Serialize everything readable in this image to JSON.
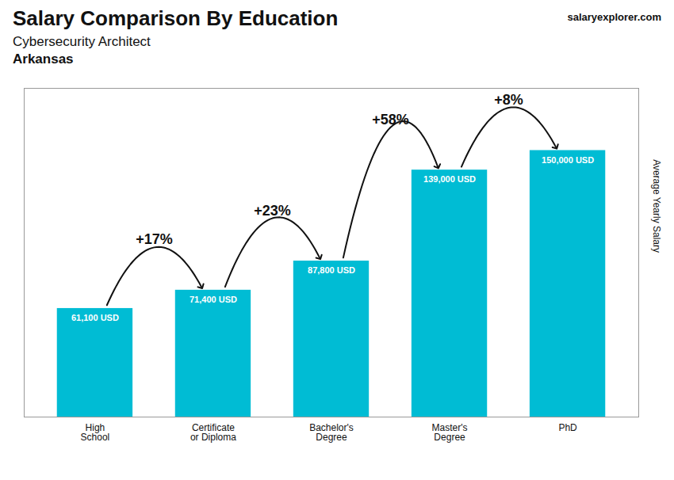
{
  "chart_data": {
    "type": "bar",
    "title": "Salary Comparison By Education",
    "subtitle": [
      "Cybersecurity Architect",
      "Arkansas"
    ],
    "caption": [
      "salary",
      "explorer.com"
    ],
    "ylabel": "Average Yearly Salary",
    "categories": [
      "High\nSchool",
      "Certificate\nor Diploma",
      "Bachelor's\nDegree",
      "Master's\nDegree",
      "PhD"
    ],
    "values": [
      61100,
      71400,
      87800,
      139000,
      150000
    ],
    "value_labels": [
      "61,100 USD",
      "71,400 USD",
      "87,800 USD",
      "139,000 USD",
      "150,000 USD"
    ],
    "data_labels": true,
    "annotations": [
      "+17%",
      "+23%",
      "+58%",
      "+8%"
    ],
    "color": "#00bcd4",
    "ylim": [
      0,
      185000
    ],
    "yticks": [],
    "tick_labels": "x",
    "grid": false
  }
}
